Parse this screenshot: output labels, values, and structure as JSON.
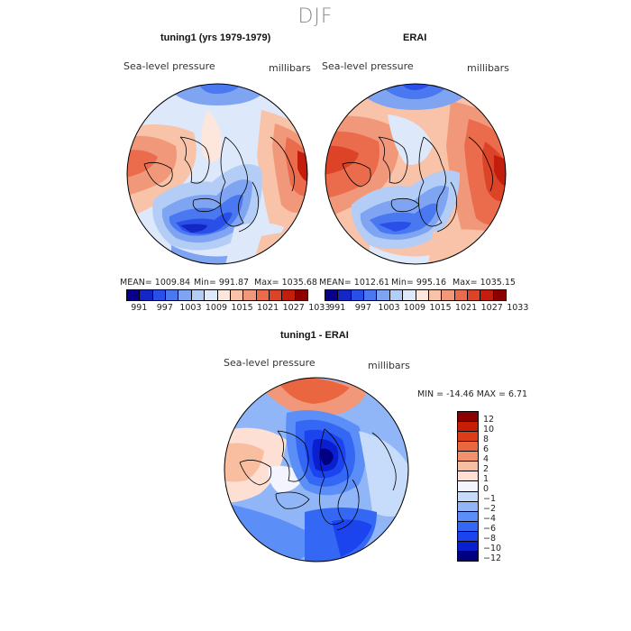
{
  "season": "DJF",
  "colors": {
    "full_field": [
      "#08008a",
      "#1426c4",
      "#2a4fe8",
      "#4a78f0",
      "#7ea4f2",
      "#b4cdf6",
      "#dde9fb",
      "#fde6dc",
      "#f8c3a9",
      "#f2987a",
      "#ea6c4c",
      "#dd4326",
      "#c31d0d",
      "#8d0000"
    ],
    "difference": [
      "#000080",
      "#0a1fd0",
      "#1c44ee",
      "#3468f4",
      "#5b8ef6",
      "#90b6f8",
      "#c7dbfb",
      "#f4f4ff",
      "#fde0d3",
      "#f9bd9f",
      "#f2926c",
      "#ea6640",
      "#dc3d18",
      "#c81d06",
      "#8a0000"
    ]
  },
  "panels": {
    "model": {
      "title": "tuning1 (yrs 1979-1979)",
      "variable": "Sea-level pressure",
      "units": "millibars",
      "mean_label": "MEAN= 1009.84",
      "min_label": "Min= 991.87",
      "max_label": "Max= 1035.68",
      "colorbar_ticks": [
        "991",
        "997",
        "1003",
        "1009",
        "1015",
        "1021",
        "1027",
        "1033"
      ]
    },
    "obs": {
      "title": "ERAI",
      "variable": "Sea-level pressure",
      "units": "millibars",
      "mean_label": "MEAN= 1012.61",
      "min_label": "Min= 995.16",
      "max_label": "Max= 1035.15",
      "colorbar_ticks": [
        "991",
        "997",
        "1003",
        "1009",
        "1015",
        "1021",
        "1027",
        "1033"
      ]
    },
    "diff": {
      "title": "tuning1 - ERAI",
      "variable": "Sea-level pressure",
      "units": "millibars",
      "minmax_label": "MIN = -14.46 MAX =   6.71",
      "colorbar_ticks": [
        "12",
        "10",
        "8",
        "6",
        "4",
        "2",
        "1",
        "0",
        "−1",
        "−2",
        "−4",
        "−6",
        "−8",
        "−10",
        "−12"
      ]
    }
  }
}
